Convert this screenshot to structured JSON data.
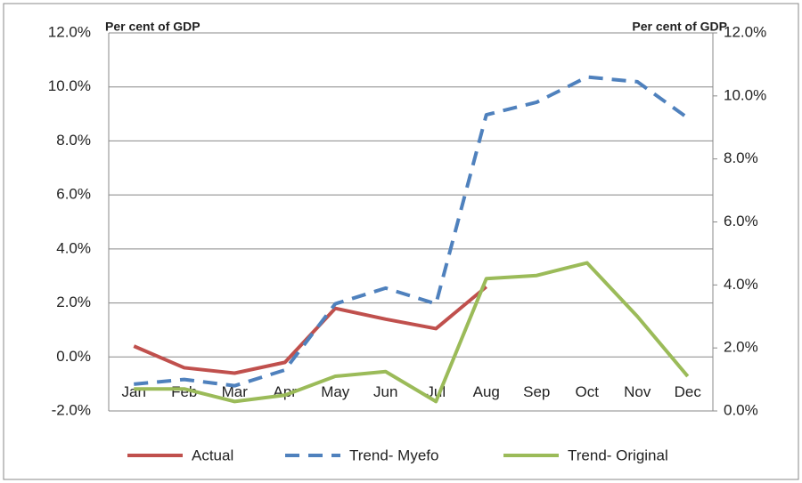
{
  "chart_data": {
    "type": "line",
    "y_label": "Per cent of GDP",
    "y2_label": "Per cent of GDP",
    "categories": [
      "Jan",
      "Feb",
      "Mar",
      "Apr",
      "May",
      "Jun",
      "Jul",
      "Aug",
      "Sep",
      "Oct",
      "Nov",
      "Dec"
    ],
    "series": [
      {
        "name": "Actual",
        "color": "#c0504d",
        "dash": false,
        "values": [
          0.4,
          -0.4,
          -0.6,
          -0.2,
          1.8,
          1.4,
          1.05,
          2.6,
          null,
          null,
          null,
          null
        ]
      },
      {
        "name": "Trend- Myefo",
        "color": "#4f81bd",
        "dash": true,
        "axis": "y2",
        "values": [
          0.85,
          1.0,
          0.8,
          1.3,
          3.4,
          3.9,
          3.4,
          9.4,
          9.8,
          10.6,
          10.45,
          9.3
        ]
      },
      {
        "name": "Trend- Original",
        "color": "#9bbb59",
        "dash": false,
        "axis": "y2",
        "values": [
          0.7,
          0.7,
          0.3,
          0.5,
          1.1,
          1.25,
          0.3,
          4.2,
          4.3,
          4.7,
          3.0,
          1.1
        ]
      }
    ],
    "ylim": [
      -2,
      12
    ],
    "yticks": [
      {
        "value": -2,
        "label": "-2.0%"
      },
      {
        "value": 0,
        "label": "0.0%"
      },
      {
        "value": 2,
        "label": "2.0%"
      },
      {
        "value": 4,
        "label": "4.0%"
      },
      {
        "value": 6,
        "label": "6.0%"
      },
      {
        "value": 8,
        "label": "8.0%"
      },
      {
        "value": 10,
        "label": "10.0%"
      },
      {
        "value": 12,
        "label": "12.0%"
      }
    ],
    "y2lim": [
      0,
      12
    ],
    "y2ticks": [
      {
        "value": 0,
        "label": "0.0%"
      },
      {
        "value": 2,
        "label": "2.0%"
      },
      {
        "value": 4,
        "label": "4.0%"
      },
      {
        "value": 6,
        "label": "6.0%"
      },
      {
        "value": 8,
        "label": "8.0%"
      },
      {
        "value": 10,
        "label": "10.0%"
      },
      {
        "value": 12,
        "label": "12.0%"
      }
    ],
    "grid": true,
    "legend": "bottom"
  }
}
